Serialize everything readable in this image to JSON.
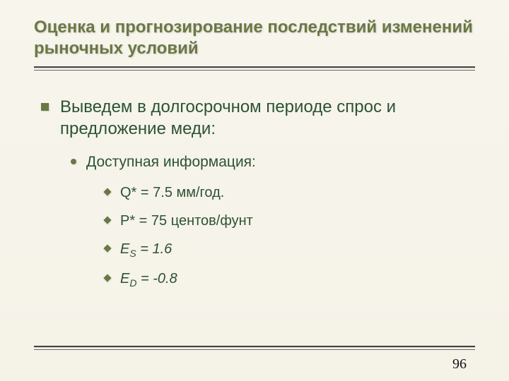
{
  "colors": {
    "background_top": "#f7f5ec",
    "background_bottom": "#f5f2e8",
    "title": "#6a7845",
    "bullet": "#6a7845",
    "body_text": "#2c5234",
    "hr_thick": "#444444",
    "hr_thin": "#666666",
    "page_number": "#111111"
  },
  "typography": {
    "title_fontsize": 24,
    "level1_fontsize": 24,
    "level2_fontsize": 21,
    "level3_fontsize": 20,
    "title_weight": "bold",
    "body_family": "Arial",
    "page_number_family": "Times New Roman"
  },
  "title": "Оценка и прогнозирование последствий изменений рыночных условий",
  "l1": "Выведем в долгосрочном периоде спрос и предложение меди:",
  "l2": "Доступная информация:",
  "items": {
    "q_label": "Q* = 7.5 мм/год.",
    "p_label": "P* = 75 центов/фунт",
    "es_var": "E",
    "es_sub": "S",
    "es_val": " = 1.6",
    "ed_var": "E",
    "ed_sub": "D",
    "ed_val": " = -0.8"
  },
  "page_number": "96"
}
